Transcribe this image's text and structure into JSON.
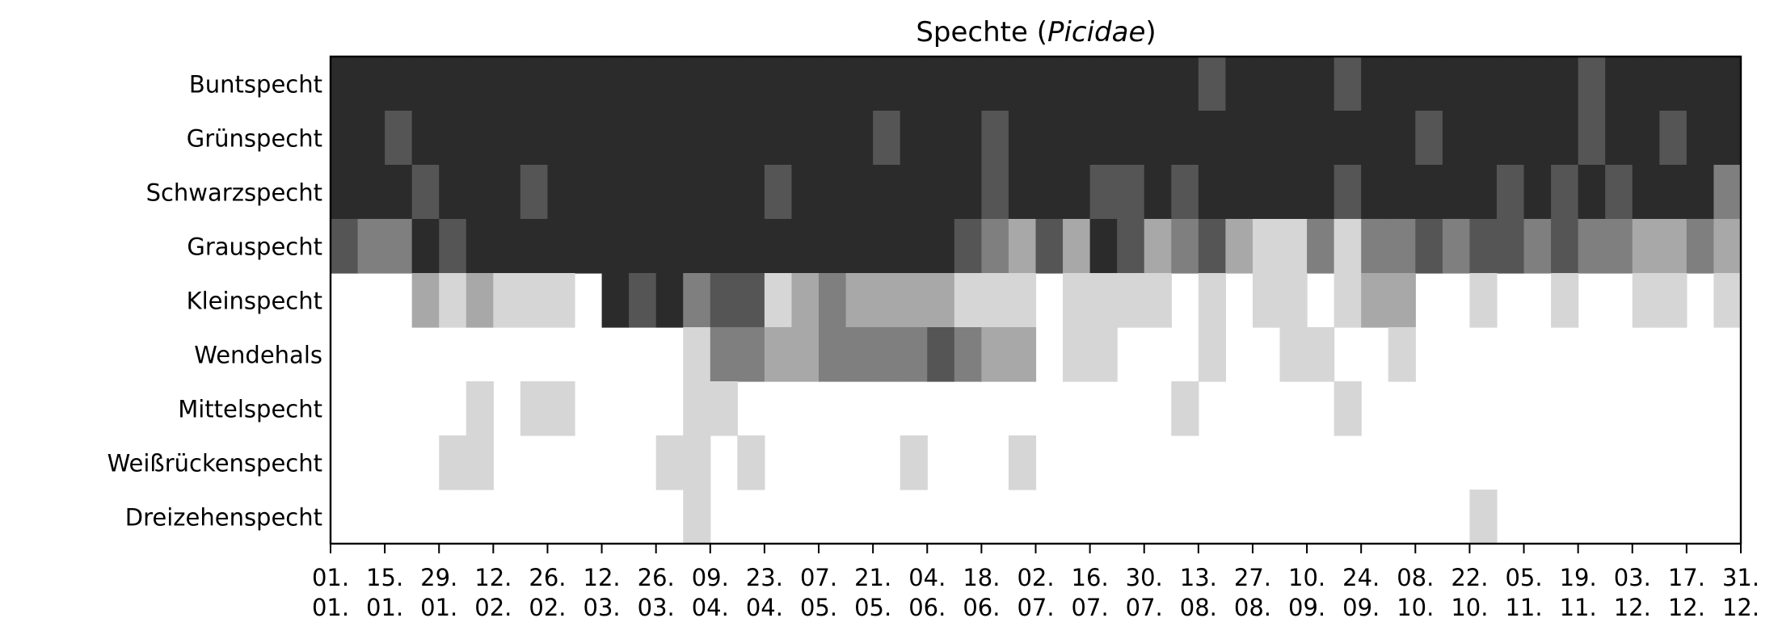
{
  "chart_data": {
    "type": "heatmap",
    "title": "Spechte (",
    "title_italic": "Picidae",
    "title_end": ")",
    "xlabel": "",
    "ylabel": "",
    "rows": [
      "Buntspecht",
      "Grünspecht",
      "Schwarzspecht",
      "Grauspecht",
      "Kleinspecht",
      "Wendehals",
      "Mittelspecht",
      "Weißrückenspecht",
      "Dreizehenspecht"
    ],
    "x_ticks": [
      {
        "day": "01.",
        "month": "01."
      },
      {
        "day": "15.",
        "month": "01."
      },
      {
        "day": "29.",
        "month": "01."
      },
      {
        "day": "12.",
        "month": "02."
      },
      {
        "day": "26.",
        "month": "02."
      },
      {
        "day": "12.",
        "month": "03."
      },
      {
        "day": "26.",
        "month": "03."
      },
      {
        "day": "09.",
        "month": "04."
      },
      {
        "day": "23.",
        "month": "04."
      },
      {
        "day": "07.",
        "month": "05."
      },
      {
        "day": "21.",
        "month": "05."
      },
      {
        "day": "04.",
        "month": "06."
      },
      {
        "day": "18.",
        "month": "06."
      },
      {
        "day": "02.",
        "month": "07."
      },
      {
        "day": "16.",
        "month": "07."
      },
      {
        "day": "30.",
        "month": "07."
      },
      {
        "day": "13.",
        "month": "08."
      },
      {
        "day": "27.",
        "month": "08."
      },
      {
        "day": "10.",
        "month": "09."
      },
      {
        "day": "24.",
        "month": "09."
      },
      {
        "day": "08.",
        "month": "10."
      },
      {
        "day": "22.",
        "month": "10."
      },
      {
        "day": "05.",
        "month": "11."
      },
      {
        "day": "19.",
        "month": "11."
      },
      {
        "day": "03.",
        "month": "12."
      },
      {
        "day": "17.",
        "month": "12."
      },
      {
        "day": "31.",
        "month": "12."
      }
    ],
    "intervals_per_row": 52,
    "value_scale": "0 = absent (white) … 5 = highest frequency (black)",
    "values": [
      [
        5,
        5,
        5,
        5,
        5,
        5,
        5,
        5,
        5,
        5,
        5,
        5,
        5,
        5,
        5,
        5,
        5,
        5,
        5,
        5,
        5,
        5,
        5,
        5,
        5,
        5,
        5,
        5,
        5,
        5,
        5,
        5,
        4,
        5,
        5,
        5,
        5,
        4,
        5,
        5,
        5,
        5,
        5,
        5,
        5,
        5,
        4,
        5,
        5,
        5,
        5,
        5
      ],
      [
        5,
        5,
        4,
        5,
        5,
        5,
        5,
        5,
        5,
        5,
        5,
        5,
        5,
        5,
        5,
        5,
        5,
        5,
        5,
        5,
        4,
        5,
        5,
        5,
        4,
        5,
        5,
        5,
        5,
        5,
        5,
        5,
        5,
        5,
        5,
        5,
        5,
        5,
        5,
        5,
        4,
        5,
        5,
        5,
        5,
        5,
        4,
        5,
        5,
        4,
        5,
        5
      ],
      [
        5,
        5,
        5,
        4,
        5,
        5,
        5,
        4,
        5,
        5,
        5,
        5,
        5,
        5,
        5,
        5,
        4,
        5,
        5,
        5,
        5,
        5,
        5,
        5,
        4,
        5,
        5,
        5,
        4,
        4,
        5,
        4,
        5,
        5,
        5,
        5,
        5,
        4,
        5,
        5,
        5,
        5,
        5,
        4,
        5,
        4,
        5,
        4,
        5,
        5,
        5,
        3
      ],
      [
        4,
        3,
        3,
        5,
        4,
        5,
        5,
        5,
        5,
        5,
        5,
        5,
        5,
        5,
        5,
        5,
        5,
        5,
        5,
        5,
        5,
        5,
        5,
        4,
        3,
        2,
        4,
        2,
        5,
        4,
        2,
        3,
        4,
        2,
        1,
        1,
        3,
        1,
        3,
        3,
        4,
        3,
        4,
        4,
        3,
        4,
        3,
        3,
        2,
        2,
        3,
        2
      ],
      [
        0,
        0,
        0,
        2,
        1,
        2,
        1,
        1,
        1,
        0,
        5,
        4,
        5,
        3,
        4,
        4,
        1,
        2,
        3,
        2,
        2,
        2,
        2,
        1,
        1,
        1,
        0,
        1,
        1,
        1,
        1,
        0,
        1,
        0,
        1,
        1,
        0,
        1,
        2,
        2,
        0,
        0,
        1,
        0,
        0,
        1,
        0,
        0,
        1,
        1,
        0,
        1
      ],
      [
        0,
        0,
        0,
        0,
        0,
        0,
        0,
        0,
        0,
        0,
        0,
        0,
        0,
        1,
        3,
        3,
        2,
        2,
        3,
        3,
        3,
        3,
        4,
        3,
        2,
        2,
        0,
        1,
        1,
        0,
        0,
        0,
        1,
        0,
        0,
        1,
        1,
        0,
        0,
        1,
        0,
        0,
        0,
        0,
        0,
        0,
        0,
        0,
        0,
        0,
        0,
        0
      ],
      [
        0,
        0,
        0,
        0,
        0,
        1,
        0,
        1,
        1,
        0,
        0,
        0,
        0,
        1,
        1,
        0,
        0,
        0,
        0,
        0,
        0,
        0,
        0,
        0,
        0,
        0,
        0,
        0,
        0,
        0,
        0,
        1,
        0,
        0,
        0,
        0,
        0,
        1,
        0,
        0,
        0,
        0,
        0,
        0,
        0,
        0,
        0,
        0,
        0,
        0,
        0,
        0
      ],
      [
        0,
        0,
        0,
        0,
        1,
        1,
        0,
        0,
        0,
        0,
        0,
        0,
        1,
        1,
        0,
        1,
        0,
        0,
        0,
        0,
        0,
        1,
        0,
        0,
        0,
        1,
        0,
        0,
        0,
        0,
        0,
        0,
        0,
        0,
        0,
        0,
        0,
        0,
        0,
        0,
        0,
        0,
        0,
        0,
        0,
        0,
        0,
        0,
        0,
        0,
        0,
        0
      ],
      [
        0,
        0,
        0,
        0,
        0,
        0,
        0,
        0,
        0,
        0,
        0,
        0,
        0,
        1,
        0,
        0,
        0,
        0,
        0,
        0,
        0,
        0,
        0,
        0,
        0,
        0,
        0,
        0,
        0,
        0,
        0,
        0,
        0,
        0,
        0,
        0,
        0,
        0,
        0,
        0,
        0,
        0,
        1,
        0,
        0,
        0,
        0,
        0,
        0,
        0,
        0,
        0
      ]
    ],
    "colors": {
      "0": "#ffffff",
      "1": "#d6d6d6",
      "2": "#a8a8a8",
      "3": "#7f7f7f",
      "4": "#555555",
      "5": "#2b2b2b",
      "6": "#000000"
    },
    "grid": false,
    "legend": "none"
  }
}
